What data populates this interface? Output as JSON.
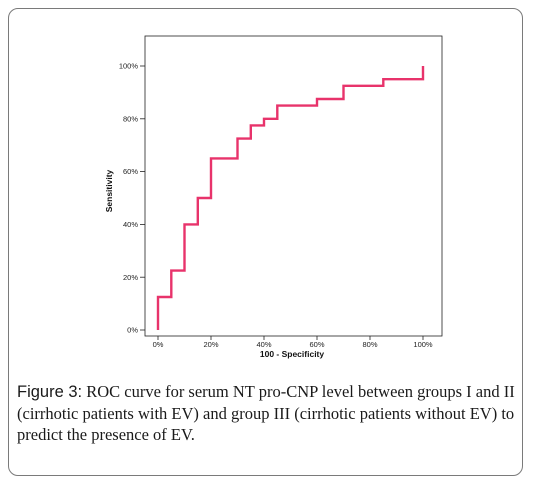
{
  "chart_data": {
    "type": "line",
    "xlabel": "100 - Specificity",
    "ylabel": "Sensitivity",
    "xlim": [
      0,
      100
    ],
    "ylim": [
      0,
      100
    ],
    "x_ticks": [
      "0%",
      "20%",
      "40%",
      "60%",
      "80%",
      "100%"
    ],
    "y_ticks": [
      "0%",
      "20%",
      "40%",
      "60%",
      "80%",
      "100%"
    ],
    "grid": false,
    "line_color": "#e8336b",
    "series": [
      {
        "x": [
          0,
          0,
          5,
          5,
          10,
          10,
          15,
          15,
          20,
          20,
          30,
          30,
          35,
          35,
          40,
          40,
          45,
          45,
          60,
          60,
          70,
          70,
          85,
          85,
          100,
          100
        ],
        "y": [
          0,
          12.5,
          12.5,
          22.5,
          22.5,
          40,
          40,
          50,
          50,
          65,
          65,
          72.5,
          72.5,
          77.5,
          77.5,
          80,
          80,
          85,
          85,
          87.5,
          87.5,
          92.5,
          92.5,
          95,
          95,
          100
        ]
      }
    ]
  },
  "caption": {
    "lead": "Figure 3:",
    "text": " ROC curve for serum NT pro-CNP level between groups I and II (cirrhotic patients with EV) and group III (cirrhotic patients without EV) to predict the presence of EV."
  }
}
